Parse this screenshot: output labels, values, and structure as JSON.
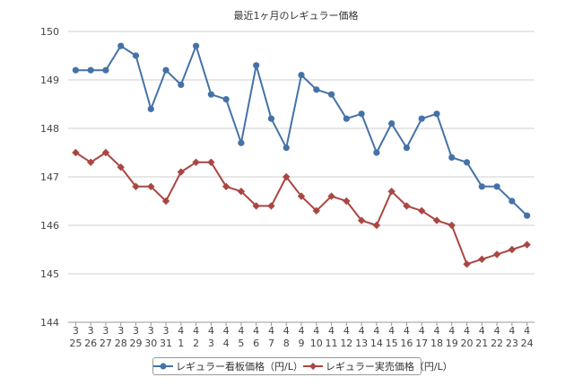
{
  "chart_data": {
    "type": "line",
    "title": "最近1ヶ月のレギュラー価格",
    "categories": [
      {
        "month": "3",
        "day": "25"
      },
      {
        "month": "3",
        "day": "26"
      },
      {
        "month": "3",
        "day": "27"
      },
      {
        "month": "3",
        "day": "28"
      },
      {
        "month": "3",
        "day": "29"
      },
      {
        "month": "3",
        "day": "30"
      },
      {
        "month": "3",
        "day": "31"
      },
      {
        "month": "4",
        "day": "1"
      },
      {
        "month": "4",
        "day": "2"
      },
      {
        "month": "4",
        "day": "3"
      },
      {
        "month": "4",
        "day": "4"
      },
      {
        "month": "4",
        "day": "5"
      },
      {
        "month": "4",
        "day": "6"
      },
      {
        "month": "4",
        "day": "7"
      },
      {
        "month": "4",
        "day": "8"
      },
      {
        "month": "4",
        "day": "9"
      },
      {
        "month": "4",
        "day": "10"
      },
      {
        "month": "4",
        "day": "11"
      },
      {
        "month": "4",
        "day": "12"
      },
      {
        "month": "4",
        "day": "13"
      },
      {
        "month": "4",
        "day": "14"
      },
      {
        "month": "4",
        "day": "15"
      },
      {
        "month": "4",
        "day": "16"
      },
      {
        "month": "4",
        "day": "17"
      },
      {
        "month": "4",
        "day": "18"
      },
      {
        "month": "4",
        "day": "19"
      },
      {
        "month": "4",
        "day": "20"
      },
      {
        "month": "4",
        "day": "21"
      },
      {
        "month": "4",
        "day": "22"
      },
      {
        "month": "4",
        "day": "23"
      },
      {
        "month": "4",
        "day": "24"
      }
    ],
    "ylim": [
      144,
      150
    ],
    "yticks": [
      144,
      145,
      146,
      147,
      148,
      149,
      150
    ],
    "grid": true,
    "legend_position": "bottom",
    "series": [
      {
        "name": "レギュラー看板価格（円/L）",
        "color": "#4572a7",
        "marker": "circle",
        "values": [
          149.2,
          149.2,
          149.2,
          149.7,
          149.5,
          148.4,
          149.2,
          148.9,
          149.7,
          148.7,
          148.6,
          147.7,
          149.3,
          148.2,
          147.6,
          149.1,
          148.8,
          148.7,
          148.2,
          148.3,
          147.5,
          148.1,
          147.6,
          148.2,
          148.3,
          147.4,
          147.3,
          146.8,
          146.8,
          146.5,
          146.2
        ]
      },
      {
        "name": "レギュラー実売価格（円/L）",
        "color": "#aa4643",
        "marker": "diamond",
        "values": [
          147.5,
          147.3,
          147.5,
          147.2,
          146.8,
          146.8,
          146.5,
          147.1,
          147.3,
          147.3,
          146.8,
          146.7,
          146.4,
          146.4,
          147.0,
          146.6,
          146.3,
          146.6,
          146.5,
          146.1,
          146.0,
          146.7,
          146.4,
          146.3,
          146.1,
          146.0,
          145.2,
          145.3,
          145.4,
          145.5,
          145.6
        ]
      }
    ]
  }
}
